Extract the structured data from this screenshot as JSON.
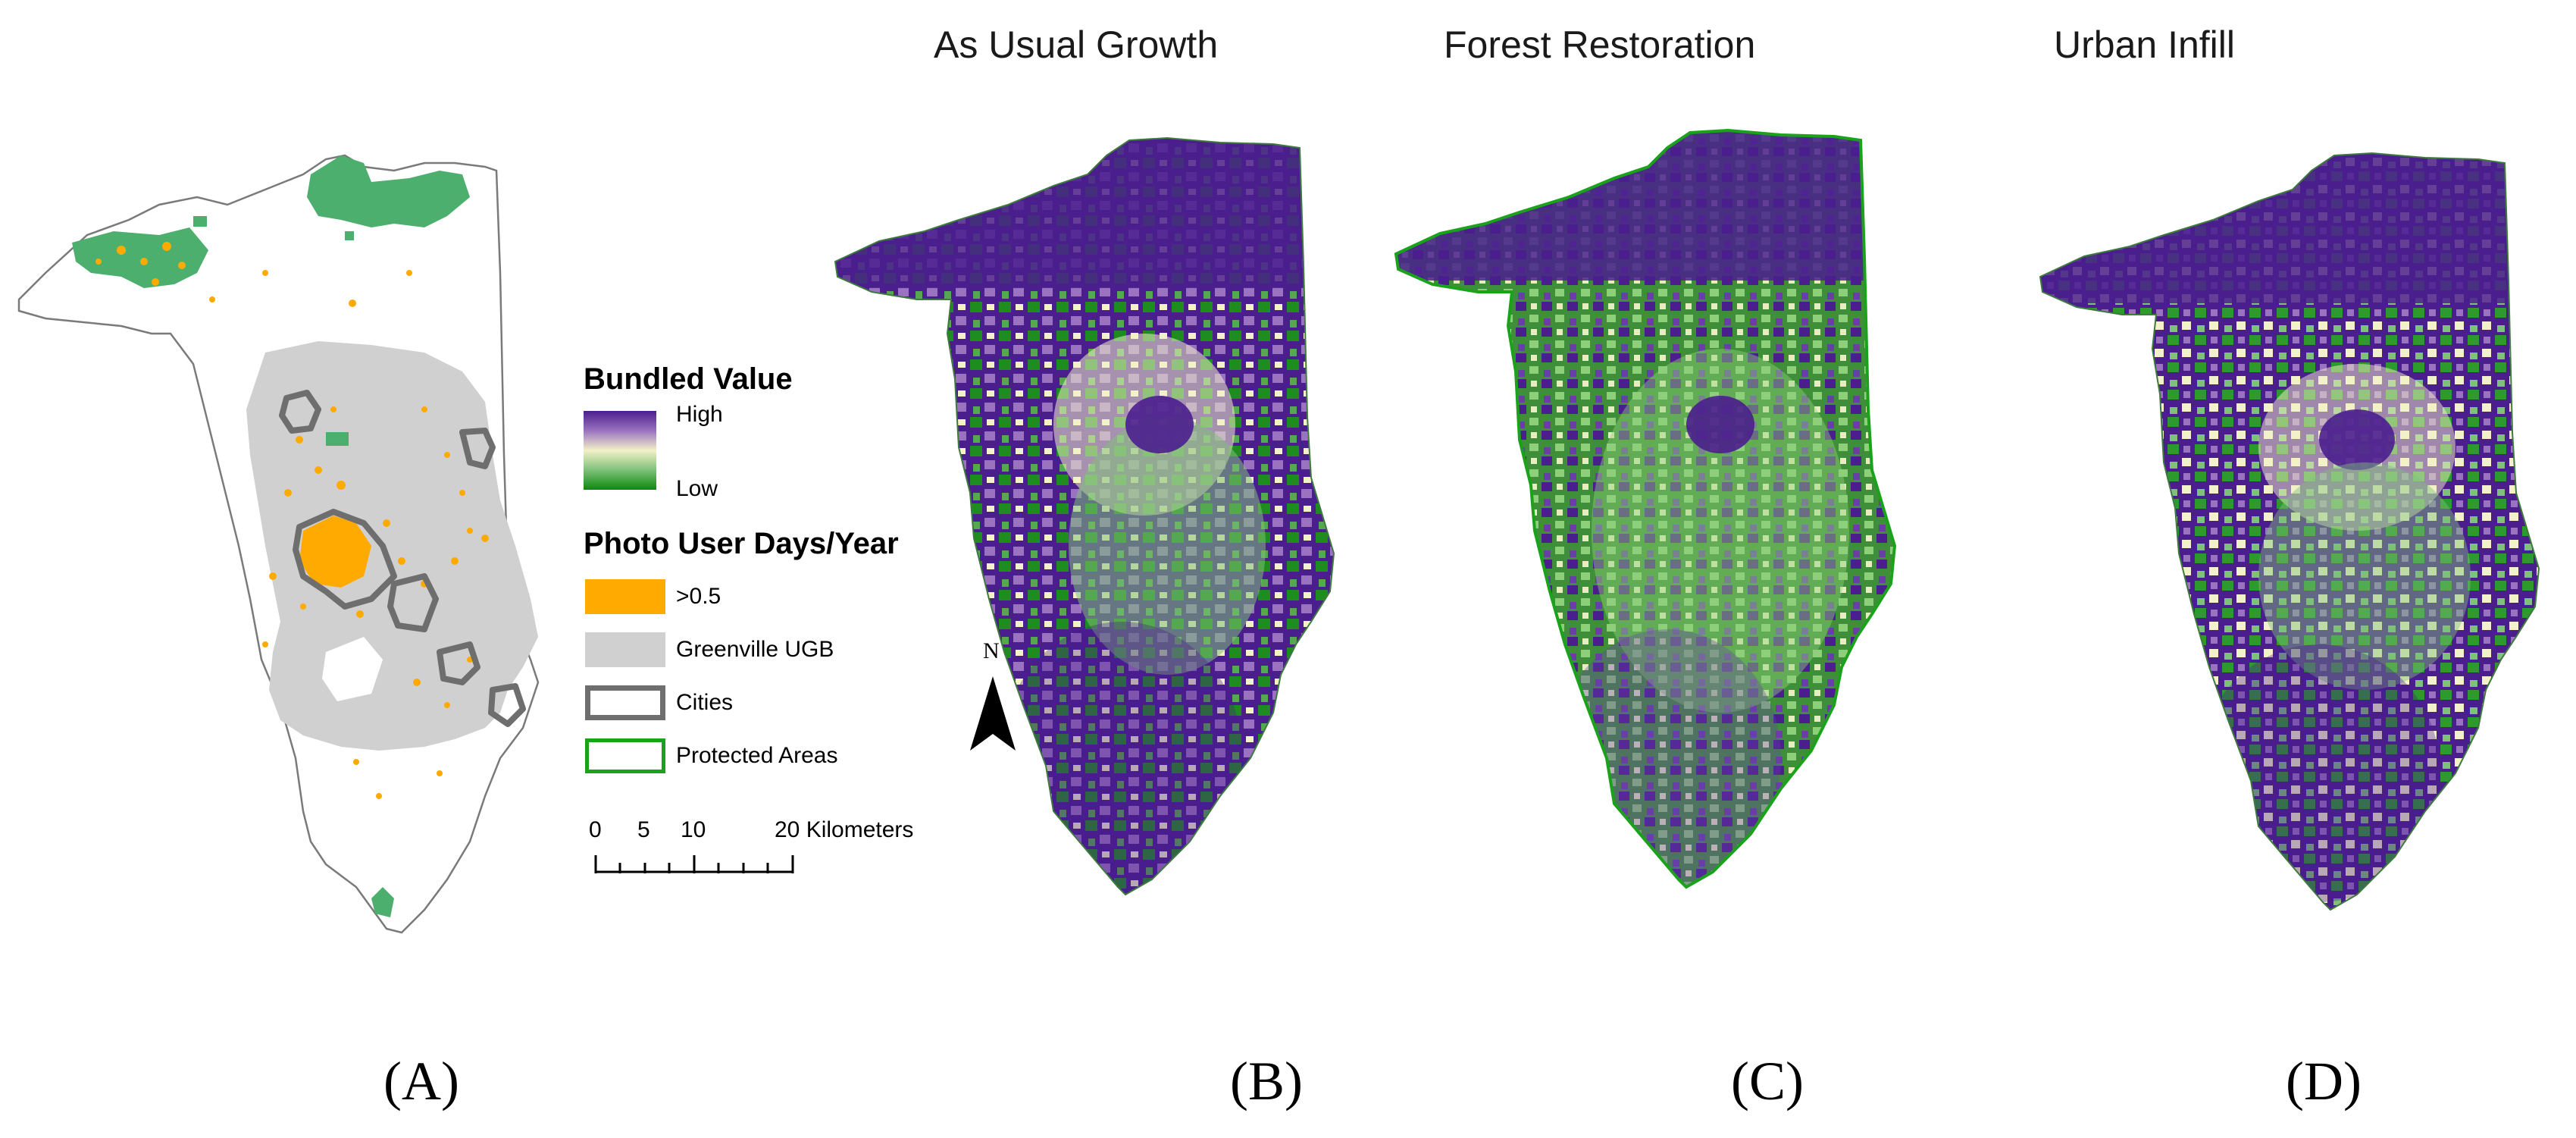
{
  "titles": {
    "b": "As Usual Growth",
    "c": "Forest Restoration",
    "d": "Urban Infill"
  },
  "panels": {
    "a": "(A)",
    "b": "(B)",
    "c": "(C)",
    "d": "(D)"
  },
  "legend": {
    "bundled_title": "Bundled Value",
    "bundled_high": "High",
    "bundled_low": "Low",
    "photo_title": "Photo User Days/Year",
    "items": [
      {
        "label": ">0.5",
        "color": "#FFAA00"
      },
      {
        "label": "Greenville UGB",
        "color": "#D0D0D0"
      },
      {
        "label": "Cities",
        "color": "#6E6E6E"
      },
      {
        "label": "Protected Areas",
        "color": "#1AA21A"
      }
    ],
    "gradient_colors": [
      "#4b1e8e",
      "#9a72c0",
      "#f3f1c8",
      "#7fc07a",
      "#0b8a0b"
    ]
  },
  "scalebar": {
    "ticks": [
      "0",
      "5",
      "10",
      "20 Kilometers"
    ]
  },
  "north_arrow": {
    "label": "N"
  },
  "colors": {
    "protected": "#4DAF6E",
    "ugb": "#D0D0D0",
    "photo": "#FFAA00",
    "cities": "#6E6E6E",
    "purple": "#4B1E8E",
    "green": "#1E8C1E",
    "cream": "#F3F1C8"
  }
}
